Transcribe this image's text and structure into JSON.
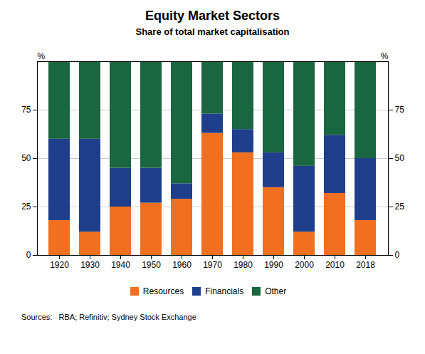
{
  "chart_data": {
    "type": "bar",
    "stacked": true,
    "title": "Equity Market Sectors",
    "subtitle": "Share of total market capitalisation",
    "source": "Sources:   RBA; Refinitiv; Sydney Stock Exchange",
    "ylabel": "%",
    "y2label": "%",
    "categories": [
      "1920",
      "1930",
      "1940",
      "1950",
      "1960",
      "1970",
      "1980",
      "1990",
      "2000",
      "2010",
      "2018"
    ],
    "series": [
      {
        "name": "Resources",
        "color": "#f07020",
        "values": [
          18,
          12,
          25,
          27,
          29,
          63,
          53,
          35,
          12,
          32,
          18
        ]
      },
      {
        "name": "Financials",
        "color": "#1f3f8c",
        "values": [
          42,
          48,
          20,
          18,
          8,
          10,
          12,
          18,
          34,
          30,
          32
        ]
      },
      {
        "name": "Other",
        "color": "#1a6641",
        "values": [
          40,
          40,
          55,
          55,
          63,
          27,
          35,
          47,
          54,
          38,
          50
        ]
      }
    ],
    "ylim": [
      0,
      100
    ],
    "yticks": [
      0,
      25,
      50,
      75
    ],
    "y2lim": [
      0,
      100
    ],
    "y2ticks": [
      0,
      25,
      50,
      75
    ],
    "grid": true,
    "legend": "bottom"
  }
}
